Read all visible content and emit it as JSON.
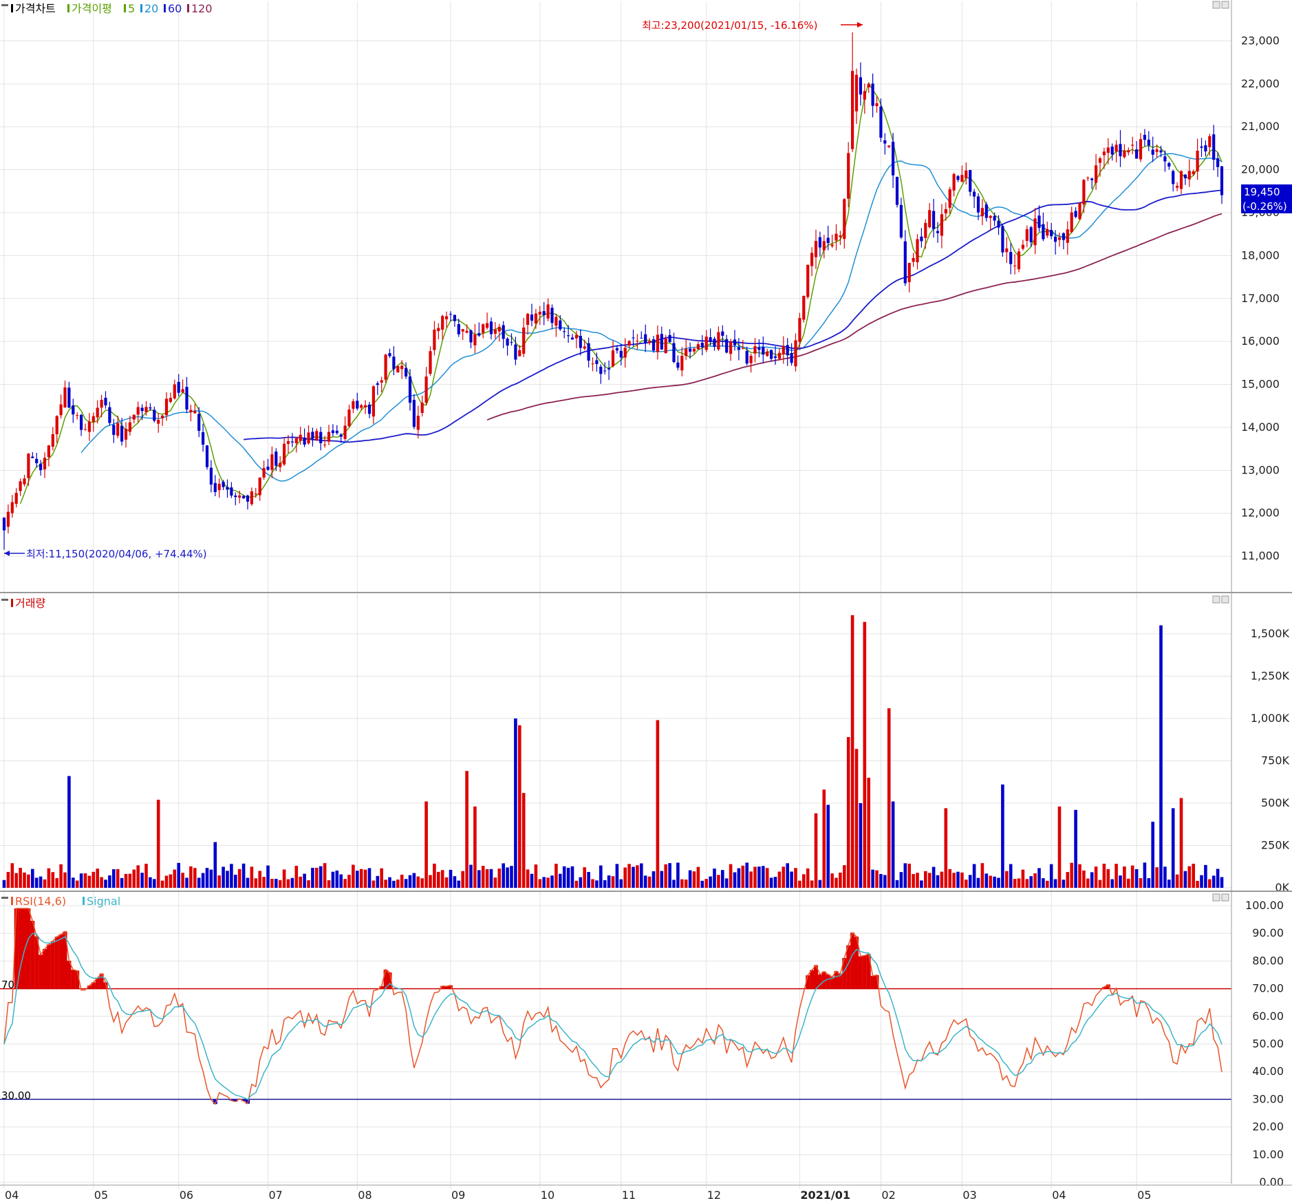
{
  "panels": {
    "price": {
      "legend": [
        {
          "text": "가격차트",
          "color": "#000000"
        },
        {
          "text": "가격이평",
          "color": "#5aa000"
        },
        {
          "text": "5",
          "color": "#5aa000"
        },
        {
          "text": "20",
          "color": "#1f8fd6"
        },
        {
          "text": "60",
          "color": "#1a1acc"
        },
        {
          "text": "120",
          "color": "#8b2252"
        }
      ],
      "y_ticks": [
        "23,000",
        "22,000",
        "21,000",
        "20,000",
        "19,000",
        "18,000",
        "17,000",
        "16,000",
        "15,000",
        "14,000",
        "13,000",
        "12,000",
        "11,000"
      ],
      "current_price": "19,450",
      "current_change": "(-0.26%)",
      "high_label": "최고:23,200(2021/01/15, -16.16%)",
      "low_label": "최저:11,150(2020/04/06, +74.44%)"
    },
    "volume": {
      "legend": [
        {
          "text": "거래량",
          "color": "#cc0000"
        }
      ],
      "y_ticks": [
        "1,500K",
        "1,250K",
        "1,000K",
        "750K",
        "500K",
        "250K",
        "0K"
      ]
    },
    "rsi": {
      "legend": [
        {
          "text": "RSI(14,6)",
          "color": "#e8552a"
        },
        {
          "text": "Signal",
          "color": "#3cb4c8"
        }
      ],
      "y_ticks": [
        "100.00",
        "90.00",
        "80.00",
        "70.00",
        "60.00",
        "50.00",
        "40.00",
        "30.00",
        "20.00",
        "10.00",
        "0.00"
      ],
      "upper_level_label": "70",
      "lower_level_label": "30.00"
    }
  },
  "x_axis_labels": [
    "04",
    "05",
    "06",
    "07",
    "08",
    "09",
    "10",
    "11",
    "12",
    "2021/01",
    "02",
    "03",
    "04",
    "05"
  ],
  "colors": {
    "up": "#dd0000",
    "down": "#0000cc",
    "ma5": "#5aa000",
    "ma20": "#1f8fd6",
    "ma60": "#1a1acc",
    "ma120": "#8b2252",
    "rsi": "#e8552a",
    "signal": "#3cb4c8"
  },
  "chart_data": {
    "type": "candlestick",
    "price_ylim": [
      10200,
      23600
    ],
    "volume_ylim": [
      0,
      1650
    ],
    "rsi_ylim": [
      0,
      100
    ],
    "rsi_levels": [
      70,
      30
    ],
    "price_anchors": [
      [
        0,
        11800
      ],
      [
        3,
        12400
      ],
      [
        6,
        13200
      ],
      [
        9,
        12900
      ],
      [
        12,
        13700
      ],
      [
        15,
        14900
      ],
      [
        17,
        14200
      ],
      [
        20,
        14100
      ],
      [
        24,
        14700
      ],
      [
        27,
        14000
      ],
      [
        30,
        13800
      ],
      [
        34,
        14500
      ],
      [
        38,
        14300
      ],
      [
        42,
        15000
      ],
      [
        45,
        14600
      ],
      [
        48,
        14000
      ],
      [
        51,
        12500
      ],
      [
        54,
        12700
      ],
      [
        57,
        12500
      ],
      [
        60,
        12200
      ],
      [
        63,
        12700
      ],
      [
        66,
        13200
      ],
      [
        70,
        13500
      ],
      [
        74,
        13700
      ],
      [
        78,
        13800
      ],
      [
        82,
        13700
      ],
      [
        86,
        14500
      ],
      [
        90,
        14500
      ],
      [
        94,
        15500
      ],
      [
        98,
        15500
      ],
      [
        101,
        14200
      ],
      [
        104,
        15000
      ],
      [
        106,
        16300
      ],
      [
        109,
        16700
      ],
      [
        112,
        16200
      ],
      [
        115,
        16200
      ],
      [
        118,
        16300
      ],
      [
        122,
        16500
      ],
      [
        126,
        15600
      ],
      [
        129,
        16500
      ],
      [
        132,
        16700
      ],
      [
        135,
        16600
      ],
      [
        138,
        16200
      ],
      [
        142,
        15900
      ],
      [
        146,
        15300
      ],
      [
        149,
        15500
      ],
      [
        152,
        15800
      ],
      [
        155,
        16000
      ],
      [
        158,
        15800
      ],
      [
        162,
        16000
      ],
      [
        166,
        15600
      ],
      [
        170,
        16000
      ],
      [
        174,
        16100
      ],
      [
        178,
        15900
      ],
      [
        182,
        15700
      ],
      [
        186,
        15700
      ],
      [
        190,
        15700
      ],
      [
        192,
        16000
      ],
      [
        194,
        15600
      ],
      [
        196,
        16500
      ],
      [
        198,
        17800
      ],
      [
        200,
        18500
      ],
      [
        202,
        18200
      ],
      [
        204,
        18000
      ],
      [
        206,
        18500
      ],
      [
        208,
        20200
      ],
      [
        210,
        22000
      ],
      [
        212,
        21900
      ],
      [
        214,
        21600
      ],
      [
        216,
        21000
      ],
      [
        218,
        20500
      ],
      [
        220,
        19200
      ],
      [
        222,
        17500
      ],
      [
        224,
        18000
      ],
      [
        226,
        18600
      ],
      [
        228,
        18800
      ],
      [
        230,
        18600
      ],
      [
        233,
        19500
      ],
      [
        236,
        20000
      ],
      [
        239,
        19200
      ],
      [
        242,
        18700
      ],
      [
        245,
        18600
      ],
      [
        248,
        17800
      ],
      [
        251,
        18300
      ],
      [
        254,
        18600
      ],
      [
        257,
        18500
      ],
      [
        260,
        18300
      ],
      [
        263,
        18800
      ],
      [
        266,
        19600
      ],
      [
        269,
        20000
      ],
      [
        272,
        20400
      ],
      [
        275,
        20600
      ],
      [
        278,
        20500
      ],
      [
        281,
        20500
      ],
      [
        284,
        20200
      ],
      [
        287,
        20000
      ],
      [
        290,
        19800
      ],
      [
        293,
        20000
      ],
      [
        296,
        20700
      ],
      [
        298,
        20300
      ],
      [
        300,
        19500
      ]
    ],
    "volume_spikes": [
      [
        16,
        660
      ],
      [
        38,
        520
      ],
      [
        52,
        270
      ],
      [
        104,
        510
      ],
      [
        114,
        690
      ],
      [
        116,
        480
      ],
      [
        126,
        1000
      ],
      [
        127,
        960
      ],
      [
        128,
        560
      ],
      [
        161,
        990
      ],
      [
        200,
        440
      ],
      [
        202,
        580
      ],
      [
        203,
        490
      ],
      [
        208,
        890
      ],
      [
        209,
        1610
      ],
      [
        210,
        820
      ],
      [
        211,
        500
      ],
      [
        212,
        1570
      ],
      [
        213,
        650
      ],
      [
        218,
        1060
      ],
      [
        219,
        510
      ],
      [
        232,
        470
      ],
      [
        246,
        610
      ],
      [
        260,
        480
      ],
      [
        264,
        460
      ],
      [
        283,
        390
      ],
      [
        285,
        1550
      ],
      [
        288,
        470
      ],
      [
        290,
        530
      ]
    ],
    "candle_count": 301,
    "first_date": "2020/04",
    "last_date": "2021/05"
  }
}
